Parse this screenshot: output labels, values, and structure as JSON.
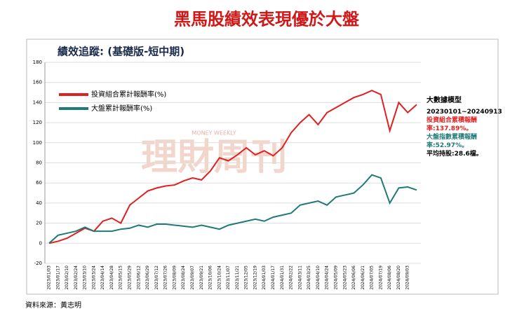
{
  "chart_data": {
    "type": "line",
    "page_title": "黑馬股績效表現優於大盤",
    "title": "績效追蹤: (基礎版-短中期)",
    "source": "資料來源：黃志明",
    "watermark": [
      "MONEY WEEKLY",
      "理財周刊"
    ],
    "annotations": [
      {
        "text": "大數據模型",
        "color": "#000000"
      },
      {
        "text": "20230101~20240913",
        "color": "#000000"
      },
      {
        "text": "投資組合累積報酬率:137.89%。",
        "color": "#e02020"
      },
      {
        "text": "大盤指數累積報酬率:52.97%。",
        "color": "#1f7a78"
      },
      {
        "text": "平均持股:28.6檔。",
        "color": "#000000"
      }
    ],
    "categories": [
      "2023/01/03",
      "2023/01/17",
      "2023/02/10",
      "2023/02/24",
      "2023/03/10",
      "2023/03/24",
      "2023/04/14",
      "2023/04/28",
      "2023/05/15",
      "2023/05/29",
      "2023/06/12",
      "2023/06/29",
      "2023/07/12",
      "2023/07/26",
      "2023/08/09",
      "2023/08/24",
      "2023/09/07",
      "2023/09/21",
      "2023/10/06",
      "2023/10/24",
      "2023/11/07",
      "2023/11/21",
      "2023/12/05",
      "2023/12/19",
      "2024/01/03",
      "2024/01/17",
      "2024/01/31",
      "2024/02/22",
      "2024/03/11",
      "2024/03/25",
      "2024/04/10",
      "2024/04/24",
      "2024/05/09",
      "2024/05/23",
      "2024/06/06",
      "2024/06/21",
      "2024/07/05",
      "2024/07/19",
      "2024/08/06",
      "2024/08/20",
      "2024/09/03",
      null
    ],
    "series": [
      {
        "name": "投資組合累計報酬率(%)",
        "color": "#e02020",
        "values": [
          0,
          2,
          5,
          10,
          15,
          12,
          22,
          25,
          20,
          38,
          45,
          52,
          55,
          57,
          58,
          62,
          65,
          63,
          72,
          85,
          82,
          88,
          95,
          88,
          92,
          87,
          95,
          110,
          120,
          128,
          118,
          130,
          135,
          140,
          145,
          148,
          152,
          148,
          112,
          140,
          130,
          137.89
        ]
      },
      {
        "name": "大盤累計報酬率(%)",
        "color": "#1f7a78",
        "values": [
          0,
          8,
          10,
          12,
          16,
          12,
          12,
          12,
          14,
          15,
          18,
          16,
          19,
          19,
          18,
          17,
          16,
          18,
          16,
          14,
          18,
          20,
          22,
          24,
          22,
          26,
          28,
          30,
          38,
          40,
          42,
          38,
          46,
          48,
          50,
          58,
          68,
          65,
          40,
          55,
          56,
          52.97
        ]
      }
    ],
    "ylim": [
      -20,
      180
    ],
    "yticks": [
      -20,
      0,
      20,
      40,
      60,
      80,
      100,
      120,
      140,
      160,
      180
    ],
    "grid": true,
    "legend": "upper left"
  }
}
